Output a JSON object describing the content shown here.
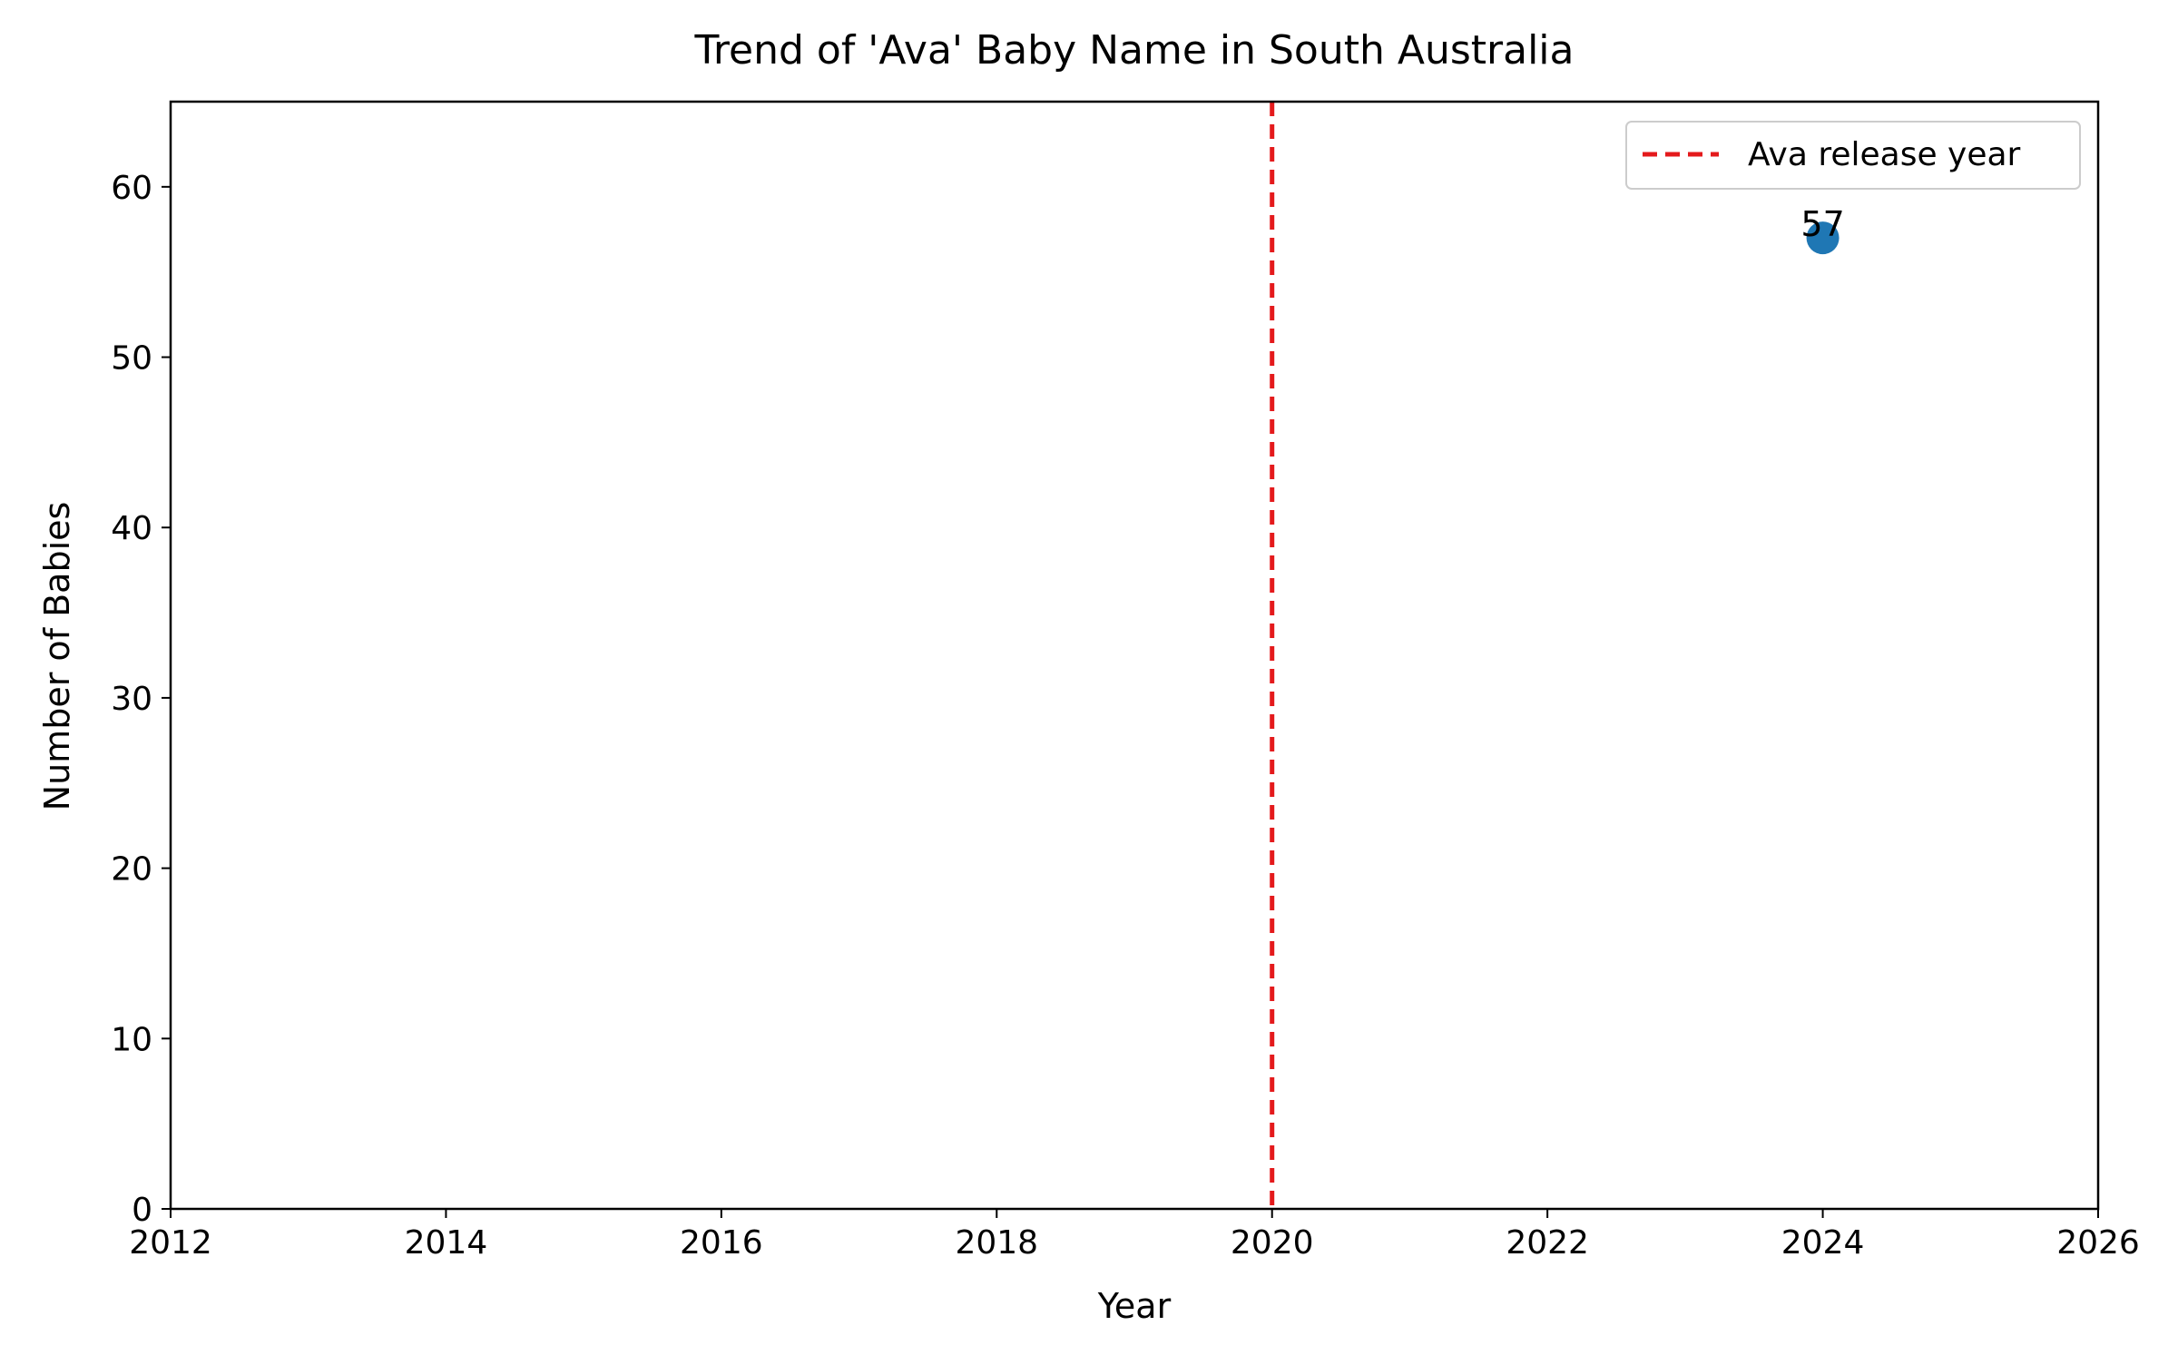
{
  "chart_data": {
    "type": "scatter",
    "title": "Trend of 'Ava' Baby Name in South Australia",
    "xlabel": "Year",
    "ylabel": "Number of Babies",
    "xlim": [
      2012,
      2026
    ],
    "ylim": [
      0,
      65
    ],
    "x_ticks": [
      2012,
      2014,
      2016,
      2018,
      2020,
      2022,
      2024,
      2026
    ],
    "y_ticks": [
      0,
      10,
      20,
      30,
      40,
      50,
      60
    ],
    "x_tick_labels": [
      "2012",
      "2014",
      "2016",
      "2018",
      "2020",
      "2022",
      "2024",
      "2026"
    ],
    "y_tick_labels": [
      "0",
      "10",
      "20",
      "30",
      "40",
      "50",
      "60"
    ],
    "grid": false,
    "legend_position": "top-right",
    "series": [
      {
        "points": [
          {
            "x": 2024,
            "y": 57,
            "label": "57"
          }
        ],
        "color": "#1f77b4"
      }
    ],
    "reference_lines": [
      {
        "orientation": "vertical",
        "x": 2020,
        "name": "Ava release year",
        "style": "dashed",
        "color": "#e41a1c"
      }
    ]
  }
}
